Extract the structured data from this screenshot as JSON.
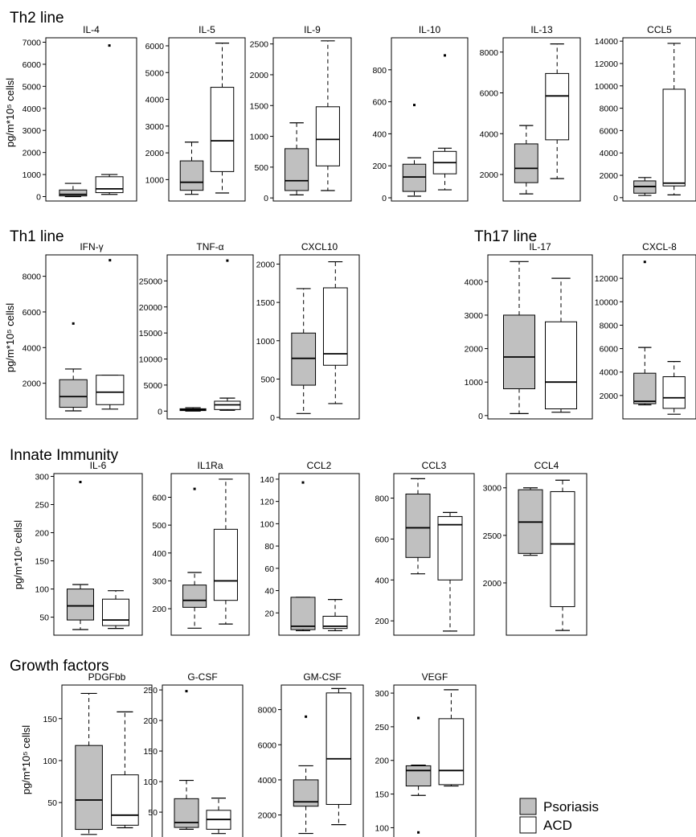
{
  "legend": {
    "items": [
      {
        "label": "Psoriasis",
        "fill": "#c0c0c0"
      },
      {
        "label": "ACD",
        "fill": "#ffffff"
      }
    ]
  },
  "chart_data": {
    "type": "boxplot",
    "groups": [
      "Psoriasis",
      "ACD"
    ],
    "ylabel": "pg/m*10⁵ cellsl",
    "sections": [
      {
        "title": "Th2 line",
        "panels": [
          {
            "title": "IL-4",
            "ylim": [
              -200,
              7200
            ],
            "yticks": [
              0,
              1000,
              2000,
              3000,
              4000,
              5000,
              6000,
              7000
            ],
            "boxes": [
              {
                "min": 0,
                "q1": 30,
                "median": 100,
                "q3": 300,
                "max": 600,
                "outliers": []
              },
              {
                "min": 100,
                "q1": 180,
                "median": 350,
                "q3": 900,
                "max": 1000,
                "outliers": [
                  6850
                ]
              }
            ]
          },
          {
            "title": "IL-5",
            "ylim": [
              200,
              6300
            ],
            "yticks": [
              1000,
              2000,
              3000,
              4000,
              5000,
              6000
            ],
            "boxes": [
              {
                "min": 450,
                "q1": 600,
                "median": 900,
                "q3": 1700,
                "max": 2400,
                "outliers": []
              },
              {
                "min": 500,
                "q1": 1300,
                "median": 2450,
                "q3": 4450,
                "max": 6100,
                "outliers": []
              }
            ]
          },
          {
            "title": "IL-9",
            "ylim": [
              -50,
              2600
            ],
            "yticks": [
              0,
              500,
              1000,
              1500,
              2000,
              2500
            ],
            "boxes": [
              {
                "min": 50,
                "q1": 120,
                "median": 280,
                "q3": 800,
                "max": 1220,
                "outliers": []
              },
              {
                "min": 120,
                "q1": 520,
                "median": 950,
                "q3": 1480,
                "max": 2550,
                "outliers": []
              }
            ]
          },
          {
            "title": "IL-10",
            "ylim": [
              -20,
              1000
            ],
            "yticks": [
              0,
              200,
              400,
              600,
              800
            ],
            "boxes": [
              {
                "min": 10,
                "q1": 40,
                "median": 130,
                "q3": 210,
                "max": 250,
                "outliers": [
                  580
                ]
              },
              {
                "min": 50,
                "q1": 150,
                "median": 220,
                "q3": 290,
                "max": 310,
                "outliers": [
                  890
                ]
              }
            ]
          },
          {
            "title": "IL-13",
            "ylim": [
              700,
              8700
            ],
            "yticks": [
              2000,
              4000,
              6000,
              8000
            ],
            "boxes": [
              {
                "min": 1050,
                "q1": 1600,
                "median": 2300,
                "q3": 3500,
                "max": 4400,
                "outliers": []
              },
              {
                "min": 1800,
                "q1": 3700,
                "median": 5850,
                "q3": 6950,
                "max": 8400,
                "outliers": []
              }
            ]
          },
          {
            "title": "CCL5",
            "ylim": [
              -300,
              14300
            ],
            "yticks": [
              0,
              2000,
              4000,
              6000,
              8000,
              10000,
              12000,
              14000
            ],
            "boxes": [
              {
                "min": 200,
                "q1": 400,
                "median": 1000,
                "q3": 1500,
                "max": 1800,
                "outliers": []
              },
              {
                "min": 250,
                "q1": 1050,
                "median": 1300,
                "q3": 9700,
                "max": 13800,
                "outliers": []
              }
            ]
          }
        ]
      },
      {
        "title": "Th1 line",
        "panels": [
          {
            "title": "IFN-γ",
            "ylim": [
              0,
              9200
            ],
            "yticks": [
              2000,
              4000,
              6000,
              8000
            ],
            "boxes": [
              {
                "min": 450,
                "q1": 650,
                "median": 1250,
                "q3": 2200,
                "max": 2800,
                "outliers": [
                  5350
                ]
              },
              {
                "min": 550,
                "q1": 800,
                "median": 1500,
                "q3": 2450,
                "max": 2450,
                "outliers": [
                  8900
                ]
              }
            ]
          },
          {
            "title": "TNF-α",
            "ylim": [
              -1500,
              30000
            ],
            "yticks": [
              0,
              5000,
              10000,
              15000,
              20000,
              25000
            ],
            "boxes": [
              {
                "min": 0,
                "q1": 100,
                "median": 250,
                "q3": 450,
                "max": 650,
                "outliers": []
              },
              {
                "min": 150,
                "q1": 300,
                "median": 1200,
                "q3": 1900,
                "max": 2500,
                "outliers": [
                  28900
                ]
              }
            ]
          },
          {
            "title": "CXCL10",
            "ylim": [
              -20,
              2120
            ],
            "yticks": [
              0,
              500,
              1000,
              1500,
              2000
            ],
            "boxes": [
              {
                "min": 50,
                "q1": 420,
                "median": 770,
                "q3": 1100,
                "max": 1680,
                "outliers": []
              },
              {
                "min": 180,
                "q1": 680,
                "median": 830,
                "q3": 1690,
                "max": 2030,
                "outliers": []
              }
            ]
          }
        ]
      },
      {
        "title": "Th17 line",
        "panels": [
          {
            "title": "IL-17",
            "ylim": [
              -100,
              4800
            ],
            "yticks": [
              0,
              1000,
              2000,
              3000,
              4000
            ],
            "boxes": [
              {
                "min": 60,
                "q1": 800,
                "median": 1750,
                "q3": 3000,
                "max": 4600,
                "outliers": []
              },
              {
                "min": 100,
                "q1": 200,
                "median": 1000,
                "q3": 2800,
                "max": 4100,
                "outliers": []
              }
            ]
          },
          {
            "title": "CXCL-8",
            "ylim": [
              0,
              14000
            ],
            "yticks": [
              2000,
              4000,
              6000,
              8000,
              10000,
              12000
            ],
            "boxes": [
              {
                "min": 1200,
                "q1": 1300,
                "median": 1500,
                "q3": 3900,
                "max": 6100,
                "outliers": [
                  13400
                ]
              },
              {
                "min": 400,
                "q1": 900,
                "median": 1800,
                "q3": 3600,
                "max": 4900,
                "outliers": []
              }
            ]
          }
        ]
      },
      {
        "title": "Innate Immunity",
        "panels": [
          {
            "title": "IL-6",
            "ylim": [
              18,
              305
            ],
            "yticks": [
              50,
              100,
              150,
              200,
              250,
              300
            ],
            "boxes": [
              {
                "min": 28,
                "q1": 45,
                "median": 70,
                "q3": 100,
                "max": 108,
                "outliers": [
                  290
                ]
              },
              {
                "min": 30,
                "q1": 35,
                "median": 45,
                "q3": 82,
                "max": 97,
                "outliers": []
              }
            ]
          },
          {
            "title": "IL1Ra",
            "ylim": [
              105,
              685
            ],
            "yticks": [
              200,
              300,
              400,
              500,
              600
            ],
            "boxes": [
              {
                "min": 130,
                "q1": 205,
                "median": 230,
                "q3": 285,
                "max": 330,
                "outliers": [
                  630
                ]
              },
              {
                "min": 145,
                "q1": 230,
                "median": 300,
                "q3": 485,
                "max": 665,
                "outliers": []
              }
            ]
          },
          {
            "title": "CCL2",
            "ylim": [
              0,
              145
            ],
            "yticks": [
              20,
              40,
              60,
              80,
              100,
              120,
              140
            ],
            "boxes": [
              {
                "min": 4,
                "q1": 5,
                "median": 8,
                "q3": 34,
                "max": 34,
                "outliers": [
                  137
                ]
              },
              {
                "min": 4,
                "q1": 6,
                "median": 8,
                "q3": 17,
                "max": 32,
                "outliers": []
              }
            ]
          },
          {
            "title": "CCL3",
            "ylim": [
              130,
              920
            ],
            "yticks": [
              200,
              400,
              600,
              800
            ],
            "boxes": [
              {
                "min": 430,
                "q1": 510,
                "median": 655,
                "q3": 820,
                "max": 895,
                "outliers": []
              },
              {
                "min": 150,
                "q1": 400,
                "median": 670,
                "q3": 710,
                "max": 730,
                "outliers": []
              }
            ]
          },
          {
            "title": "CCL4",
            "ylim": [
              1450,
              3150
            ],
            "yticks": [
              2000,
              2500,
              3000
            ],
            "boxes": [
              {
                "min": 2290,
                "q1": 2310,
                "median": 2640,
                "q3": 2980,
                "max": 3000,
                "outliers": []
              },
              {
                "min": 1500,
                "q1": 1750,
                "median": 2410,
                "q3": 2960,
                "max": 3080,
                "outliers": []
              }
            ]
          }
        ]
      },
      {
        "title": "Growth factors",
        "panels": [
          {
            "title": "PDGFbb",
            "ylim": [
              8,
              190
            ],
            "yticks": [
              50,
              100,
              150
            ],
            "boxes": [
              {
                "min": 12,
                "q1": 18,
                "median": 53,
                "q3": 118,
                "max": 180,
                "outliers": []
              },
              {
                "min": 20,
                "q1": 23,
                "median": 35,
                "q3": 83,
                "max": 158,
                "outliers": []
              }
            ]
          },
          {
            "title": "G-CSF",
            "ylim": [
              8,
              258
            ],
            "yticks": [
              50,
              100,
              150,
              200,
              250
            ],
            "boxes": [
              {
                "min": 22,
                "q1": 25,
                "median": 33,
                "q3": 72,
                "max": 102,
                "outliers": [
                  248
                ]
              },
              {
                "min": 15,
                "q1": 22,
                "median": 38,
                "q3": 53,
                "max": 73,
                "outliers": []
              }
            ]
          },
          {
            "title": "GM-CSF",
            "ylim": [
              700,
              9400
            ],
            "yticks": [
              2000,
              4000,
              6000,
              8000
            ],
            "boxes": [
              {
                "min": 950,
                "q1": 2500,
                "median": 2750,
                "q3": 4000,
                "max": 4800,
                "outliers": [
                  7600
                ]
              },
              {
                "min": 1450,
                "q1": 2600,
                "median": 5200,
                "q3": 8950,
                "max": 9200,
                "outliers": []
              }
            ]
          },
          {
            "title": "VEGF",
            "ylim": [
              85,
              312
            ],
            "yticks": [
              100,
              150,
              200,
              250,
              300
            ],
            "boxes": [
              {
                "min": 148,
                "q1": 162,
                "median": 185,
                "q3": 192,
                "max": 193,
                "outliers": [
                  93,
                  263
                ]
              },
              {
                "min": 162,
                "q1": 164,
                "median": 185,
                "q3": 262,
                "max": 305,
                "outliers": []
              }
            ]
          }
        ]
      }
    ]
  }
}
